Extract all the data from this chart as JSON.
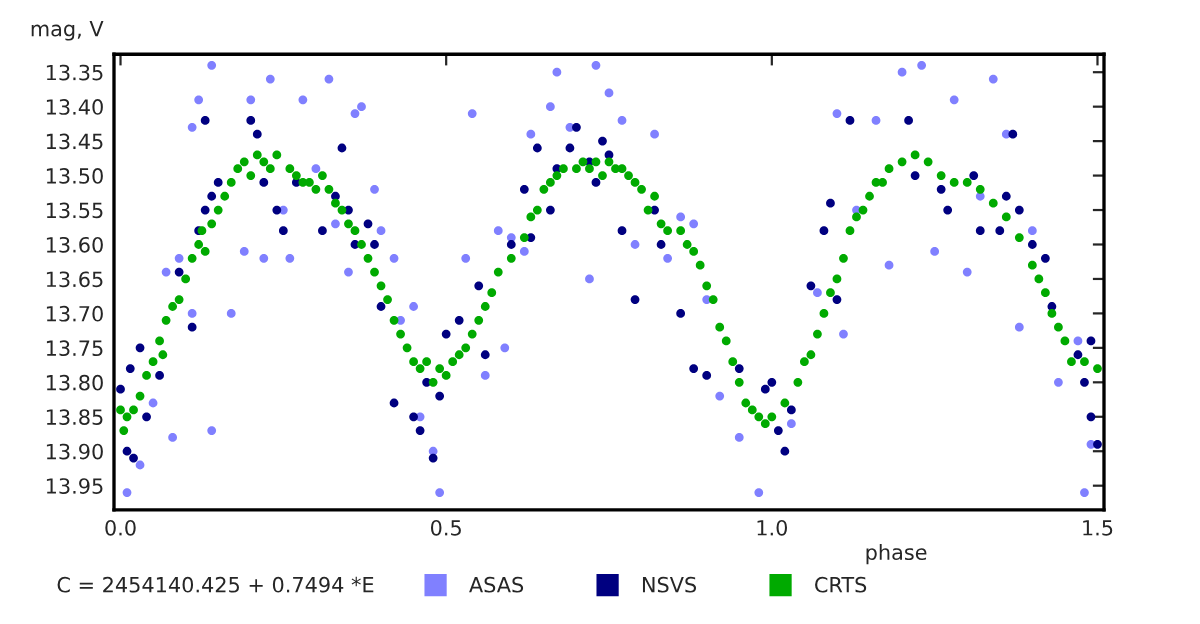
{
  "chart_data": {
    "type": "scatter",
    "xlabel": "phase",
    "ylabel": "mag, V",
    "annotations": [
      "C = 2454140.425 + 0.7494 *E"
    ],
    "xlim": [
      -0.01,
      1.51
    ],
    "ylim": [
      13.985,
      13.324
    ],
    "xticks": [
      {
        "value": 0,
        "label": "0.0"
      },
      {
        "value": 0.5,
        "label": "0.5"
      },
      {
        "value": 1,
        "label": "1.0"
      },
      {
        "value": 1.5,
        "label": "1.5"
      }
    ],
    "yticks": [
      13.35,
      {
        "value": 13.4,
        "label": "13.40"
      },
      13.45,
      {
        "value": 13.5,
        "label": "13.50"
      },
      13.55,
      {
        "value": 13.6,
        "label": "13.60"
      },
      13.65,
      {
        "value": 13.7,
        "label": "13.70"
      },
      13.75,
      {
        "value": 13.8,
        "label": "13.80"
      },
      13.85,
      {
        "value": 13.9,
        "label": "13.90"
      },
      13.95
    ],
    "grid": false,
    "legend": "bottom",
    "marker": "circle",
    "series": [
      {
        "name": "ASAS",
        "color": "#8080ff",
        "x": [
          0.01,
          0.03,
          0.05,
          0.07,
          0.08,
          0.09,
          0.11,
          0.11,
          0.12,
          0.14,
          0.14,
          0.17,
          0.19,
          0.2,
          0.22,
          0.23,
          0.25,
          0.26,
          0.28,
          0.3,
          0.32,
          0.33,
          0.35,
          0.36,
          0.37,
          0.39,
          0.4,
          0.42,
          0.43,
          0.45,
          0.46,
          0.48,
          0.49,
          0.53,
          0.54,
          0.56,
          0.58,
          0.59,
          0.6,
          0.62,
          0.63,
          0.66,
          0.67,
          0.69,
          0.72,
          0.73,
          0.75,
          0.77,
          0.79,
          0.82,
          0.84,
          0.86,
          0.88,
          0.9,
          0.92,
          0.95,
          0.98,
          1.03,
          1.07,
          1.1,
          1.11,
          1.13,
          1.16,
          1.18,
          1.2,
          1.23,
          1.25,
          1.28,
          1.3,
          1.32,
          1.34,
          1.36,
          1.38,
          1.4,
          1.44,
          1.47,
          1.48,
          1.49
        ],
        "values": [
          13.96,
          13.92,
          13.83,
          13.64,
          13.88,
          13.62,
          13.43,
          13.7,
          13.39,
          13.34,
          13.87,
          13.7,
          13.61,
          13.39,
          13.62,
          13.36,
          13.55,
          13.62,
          13.39,
          13.49,
          13.36,
          13.57,
          13.64,
          13.41,
          13.4,
          13.52,
          13.58,
          13.62,
          13.71,
          13.69,
          13.85,
          13.9,
          13.96,
          13.62,
          13.41,
          13.79,
          13.58,
          13.75,
          13.59,
          13.61,
          13.44,
          13.4,
          13.35,
          13.43,
          13.65,
          13.34,
          13.38,
          13.42,
          13.6,
          13.44,
          13.62,
          13.56,
          13.57,
          13.68,
          13.82,
          13.88,
          13.96,
          13.86,
          13.67,
          13.41,
          13.73,
          13.55,
          13.42,
          13.63,
          13.35,
          13.34,
          13.61,
          13.39,
          13.64,
          13.53,
          13.36,
          13.44,
          13.72,
          13.58,
          13.8,
          13.74,
          13.96,
          13.89
        ]
      },
      {
        "name": "NSVS",
        "color": "#000080",
        "x": [
          0.0,
          0.01,
          0.015,
          0.02,
          0.03,
          0.04,
          0.06,
          0.09,
          0.11,
          0.12,
          0.13,
          0.13,
          0.14,
          0.15,
          0.2,
          0.21,
          0.22,
          0.24,
          0.25,
          0.27,
          0.31,
          0.33,
          0.34,
          0.35,
          0.36,
          0.38,
          0.39,
          0.4,
          0.42,
          0.45,
          0.46,
          0.47,
          0.48,
          0.49,
          0.5,
          0.52,
          0.55,
          0.56,
          0.6,
          0.62,
          0.63,
          0.64,
          0.66,
          0.67,
          0.69,
          0.7,
          0.72,
          0.73,
          0.74,
          0.75,
          0.77,
          0.79,
          0.82,
          0.83,
          0.86,
          0.88,
          0.9,
          0.95,
          0.99,
          1.0,
          1.01,
          1.02,
          1.03,
          1.06,
          1.08,
          1.09,
          1.1,
          1.12,
          1.21,
          1.22,
          1.26,
          1.27,
          1.31,
          1.32,
          1.35,
          1.36,
          1.37,
          1.38,
          1.4,
          1.42,
          1.43,
          1.47,
          1.48,
          1.49,
          1.49,
          1.5
        ],
        "values": [
          13.81,
          13.9,
          13.78,
          13.91,
          13.75,
          13.85,
          13.79,
          13.64,
          13.72,
          13.58,
          13.55,
          13.42,
          13.53,
          13.51,
          13.42,
          13.44,
          13.51,
          13.55,
          13.58,
          13.51,
          13.58,
          13.53,
          13.46,
          13.55,
          13.6,
          13.57,
          13.6,
          13.69,
          13.83,
          13.85,
          13.87,
          13.8,
          13.91,
          13.82,
          13.73,
          13.71,
          13.66,
          13.76,
          13.6,
          13.52,
          13.59,
          13.46,
          13.55,
          13.49,
          13.46,
          13.43,
          13.48,
          13.51,
          13.45,
          13.47,
          13.58,
          13.68,
          13.55,
          13.6,
          13.7,
          13.78,
          13.79,
          13.78,
          13.81,
          13.8,
          13.87,
          13.9,
          13.84,
          13.66,
          13.58,
          13.54,
          13.68,
          13.42,
          13.42,
          13.5,
          13.52,
          13.55,
          13.5,
          13.58,
          13.58,
          13.53,
          13.44,
          13.55,
          13.6,
          13.62,
          13.69,
          13.76,
          13.8,
          13.74,
          13.85,
          13.89
        ]
      },
      {
        "name": "CRTS",
        "color": "#00aa00",
        "x": [
          0.0,
          0.005,
          0.01,
          0.02,
          0.03,
          0.04,
          0.05,
          0.06,
          0.065,
          0.07,
          0.08,
          0.09,
          0.1,
          0.11,
          0.12,
          0.125,
          0.13,
          0.14,
          0.15,
          0.16,
          0.17,
          0.18,
          0.19,
          0.2,
          0.21,
          0.22,
          0.23,
          0.24,
          0.26,
          0.27,
          0.28,
          0.29,
          0.3,
          0.31,
          0.32,
          0.33,
          0.34,
          0.35,
          0.36,
          0.37,
          0.38,
          0.39,
          0.4,
          0.41,
          0.42,
          0.43,
          0.44,
          0.45,
          0.46,
          0.47,
          0.48,
          0.49,
          0.5,
          0.51,
          0.52,
          0.53,
          0.54,
          0.55,
          0.56,
          0.57,
          0.58,
          0.6,
          0.62,
          0.63,
          0.64,
          0.65,
          0.66,
          0.67,
          0.68,
          0.7,
          0.71,
          0.72,
          0.73,
          0.74,
          0.75,
          0.76,
          0.77,
          0.78,
          0.79,
          0.8,
          0.81,
          0.82,
          0.83,
          0.84,
          0.86,
          0.87,
          0.88,
          0.89,
          0.9,
          0.91,
          0.92,
          0.93,
          0.94,
          0.95,
          0.96,
          0.97,
          0.98,
          0.99,
          1.0,
          1.02,
          1.04,
          1.05,
          1.06,
          1.07,
          1.08,
          1.09,
          1.1,
          1.11,
          1.12,
          1.13,
          1.14,
          1.15,
          1.16,
          1.17,
          1.18,
          1.2,
          1.22,
          1.24,
          1.26,
          1.28,
          1.3,
          1.32,
          1.34,
          1.36,
          1.38,
          1.4,
          1.41,
          1.42,
          1.43,
          1.44,
          1.45,
          1.46,
          1.48,
          1.5
        ],
        "values": [
          13.84,
          13.87,
          13.85,
          13.84,
          13.82,
          13.79,
          13.77,
          13.74,
          13.76,
          13.71,
          13.69,
          13.68,
          13.65,
          13.62,
          13.6,
          13.58,
          13.61,
          13.57,
          13.55,
          13.53,
          13.51,
          13.49,
          13.48,
          13.5,
          13.47,
          13.48,
          13.49,
          13.47,
          13.49,
          13.5,
          13.51,
          13.51,
          13.52,
          13.5,
          13.52,
          13.54,
          13.55,
          13.57,
          13.58,
          13.6,
          13.62,
          13.64,
          13.66,
          13.68,
          13.71,
          13.73,
          13.75,
          13.77,
          13.78,
          13.77,
          13.8,
          13.78,
          13.79,
          13.77,
          13.76,
          13.75,
          13.73,
          13.71,
          13.69,
          13.67,
          13.64,
          13.62,
          13.59,
          13.56,
          13.55,
          13.52,
          13.51,
          13.5,
          13.49,
          13.49,
          13.48,
          13.49,
          13.48,
          13.5,
          13.48,
          13.49,
          13.49,
          13.5,
          13.51,
          13.52,
          13.55,
          13.53,
          13.57,
          13.58,
          13.58,
          13.6,
          13.61,
          13.63,
          13.66,
          13.68,
          13.72,
          13.74,
          13.77,
          13.8,
          13.83,
          13.84,
          13.85,
          13.86,
          13.85,
          13.83,
          13.8,
          13.77,
          13.76,
          13.73,
          13.7,
          13.67,
          13.65,
          13.62,
          13.58,
          13.56,
          13.55,
          13.53,
          13.51,
          13.51,
          13.49,
          13.48,
          13.47,
          13.48,
          13.5,
          13.51,
          13.51,
          13.52,
          13.54,
          13.56,
          13.59,
          13.63,
          13.65,
          13.67,
          13.7,
          13.72,
          13.74,
          13.77,
          13.77,
          13.78
        ]
      }
    ]
  }
}
